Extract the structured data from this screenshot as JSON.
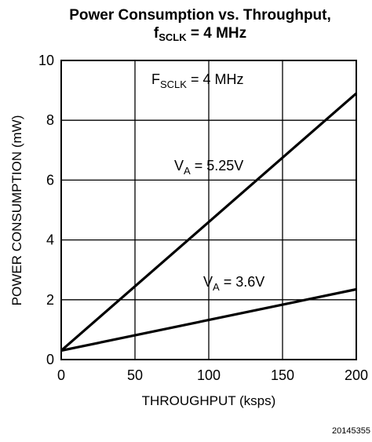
{
  "chart_data": {
    "type": "line",
    "title_line1": "Power Consumption vs. Throughput,",
    "title_line2": {
      "main": "f",
      "sub": "SCLK",
      "rest": " = 4 MHz"
    },
    "xlabel": "THROUGHPUT (ksps)",
    "ylabel": "POWER CONSUMPTION (mW)",
    "xlim": [
      0,
      200
    ],
    "ylim": [
      0,
      10
    ],
    "xticks": [
      "0",
      "50",
      "100",
      "150",
      "200"
    ],
    "yticks": [
      "0",
      "2",
      "4",
      "6",
      "8",
      "10"
    ],
    "grid": true,
    "series": [
      {
        "name": "V_A = 5.25V",
        "x": [
          0,
          200
        ],
        "y": [
          0.3,
          8.9
        ]
      },
      {
        "name": "V_A = 3.6V",
        "x": [
          0,
          200
        ],
        "y": [
          0.3,
          2.35
        ]
      }
    ],
    "annotations": {
      "condition": {
        "main": "F",
        "sub": "SCLK",
        "rest": " = 4 MHz"
      },
      "va525": {
        "main": "V",
        "sub": "A",
        "rest": " = 5.25V"
      },
      "va36": {
        "main": "V",
        "sub": "A",
        "rest": " = 3.6V"
      }
    },
    "figure_id": "20145355"
  }
}
